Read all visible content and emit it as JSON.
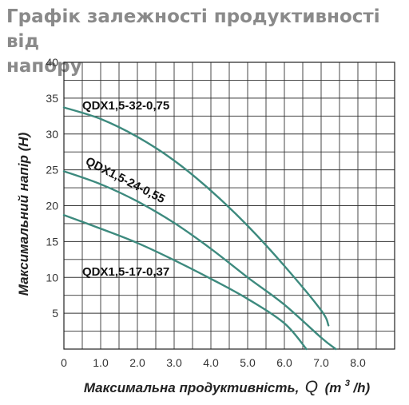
{
  "title_line1": "Графік залежності продуктивності від",
  "title_line2": "напору",
  "chart_data": {
    "type": "line",
    "title": "Графік залежності продуктивності від напору",
    "xlabel_main": "Максимальна продуктивність,",
    "xlabel_symbol": "Q",
    "xlabel_unit_open": "(m",
    "xlabel_unit_sup": "3",
    "xlabel_unit_close": "/h)",
    "ylabel": "Максимальний напір (H)",
    "xlim": [
      0,
      9
    ],
    "ylim": [
      0,
      40
    ],
    "x_ticks": [
      0,
      1,
      2,
      3,
      4,
      5,
      6,
      7,
      8
    ],
    "x_tick_labels": [
      "0",
      "1.0",
      "2.0",
      "3.0",
      "4.0",
      "5.0",
      "6.0",
      "7.0",
      "8.0"
    ],
    "y_ticks": [
      5,
      10,
      15,
      20,
      25,
      30,
      35,
      40
    ],
    "y_tick_labels": [
      "5",
      "10",
      "15",
      "20",
      "25",
      "30",
      "35",
      "40"
    ],
    "grid": true,
    "line_color": "#3d8a7e",
    "series": [
      {
        "name": "QDX1,5-32-0,75",
        "x": [
          0,
          1,
          2,
          3,
          4,
          5,
          6,
          7,
          7.2
        ],
        "y": [
          33.7,
          32.1,
          29.6,
          26.3,
          22.1,
          17.2,
          11.6,
          5.4,
          3.3
        ]
      },
      {
        "name": "QDX1,5-24-0,55",
        "x": [
          0,
          1,
          2,
          3,
          4,
          5,
          6,
          7,
          7.4
        ],
        "y": [
          24.8,
          23.0,
          20.6,
          17.6,
          14.0,
          10.0,
          6.2,
          1.6,
          0
        ]
      },
      {
        "name": "QDX1,5-17-0,37",
        "x": [
          0,
          1,
          2,
          3,
          4,
          5,
          6,
          6.6
        ],
        "y": [
          18.7,
          16.8,
          14.8,
          12.4,
          9.8,
          7.0,
          3.6,
          0
        ]
      }
    ]
  }
}
